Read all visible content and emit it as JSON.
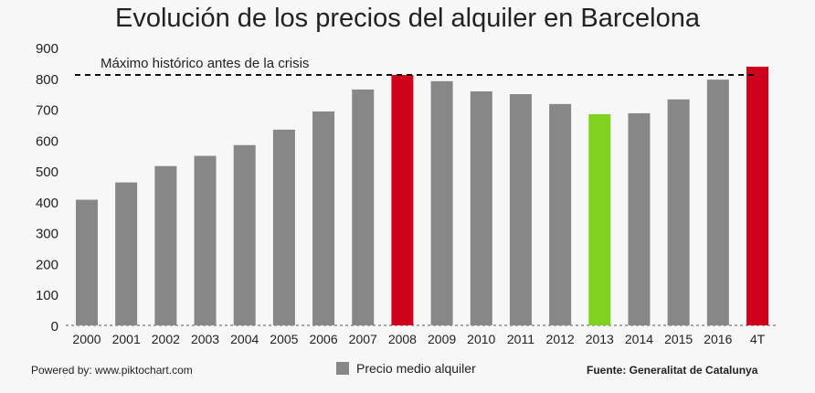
{
  "chart_data": {
    "type": "bar",
    "title": "Evolución de los precios del alquiler en Barcelona",
    "categories": [
      "2000",
      "2001",
      "2002",
      "2003",
      "2004",
      "2005",
      "2006",
      "2007",
      "2008",
      "2009",
      "2010",
      "2011",
      "2012",
      "2013",
      "2014",
      "2015",
      "2016",
      "4T"
    ],
    "series": [
      {
        "name": "Precio medio alquiler",
        "values": [
          407,
          463,
          516,
          549,
          584,
          634,
          693,
          764,
          811,
          791,
          758,
          749,
          717,
          684,
          687,
          732,
          796,
          838
        ]
      }
    ],
    "bar_colors": {
      "default": "#878787",
      "2008": "#d0021b",
      "4T": "#d0021b",
      "2013": "#7ed321"
    },
    "ylim": [
      0,
      900
    ],
    "yticks": [
      0,
      100,
      200,
      300,
      400,
      500,
      600,
      700,
      800,
      900
    ],
    "reference_line": {
      "value": 811,
      "label": "Máximo histórico antes de la crisis",
      "style": "dashed"
    },
    "legend": "bottom",
    "grid": false
  },
  "footer": {
    "powered_by": "Powered by: www.piktochart.com",
    "source": "Fuente: Generalitat de Catalunya"
  }
}
